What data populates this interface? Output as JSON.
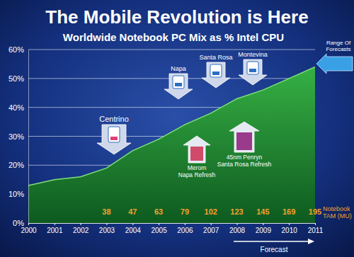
{
  "chart_data": {
    "type": "area",
    "title": "The Mobile Revolution is Here",
    "subtitle": "Worldwide Notebook PC Mix as % Intel CPU",
    "x": [
      2000,
      2001,
      2002,
      2003,
      2004,
      2005,
      2006,
      2007,
      2008,
      2009,
      2010,
      2011
    ],
    "series": [
      {
        "color": "#36b044",
        "values": [
          13,
          15,
          16,
          19,
          25,
          29,
          34,
          38,
          43,
          46,
          50,
          54
        ]
      }
    ],
    "xlim": [
      2000,
      2011
    ],
    "xticks": [
      2000,
      2001,
      2002,
      2003,
      2004,
      2005,
      2006,
      2007,
      2008,
      2009,
      2010,
      2011
    ],
    "ylim": [
      0,
      60
    ],
    "yticks": [
      {
        "value": 0,
        "label": "0%"
      },
      {
        "value": 10,
        "label": "10%"
      },
      {
        "value": 20,
        "label": "20%"
      },
      {
        "value": 30,
        "label": "30%"
      },
      {
        "value": 40,
        "label": "40%"
      },
      {
        "value": 50,
        "label": "50%"
      },
      {
        "value": 60,
        "label": "60%"
      }
    ],
    "grid": true,
    "notebook_tam": {
      "lines": [
        "Notebook",
        "TAM (MU)"
      ],
      "x": [
        2003,
        2004,
        2005,
        2006,
        2007,
        2008,
        2009,
        2010,
        2011
      ],
      "values": [
        38,
        47,
        63,
        79,
        102,
        123,
        145,
        169,
        195
      ]
    },
    "platforms": [
      {
        "lines": [
          "Centrino"
        ]
      },
      {
        "lines": [
          "Napa"
        ]
      },
      {
        "lines": [
          "Santa Rosa"
        ]
      },
      {
        "lines": [
          "Montevina"
        ]
      }
    ],
    "refreshes": [
      {
        "lines": [
          "Merom",
          "Napa Refresh"
        ]
      },
      {
        "lines": [
          "45nm Penryn",
          "Santa Rosa Refresh"
        ]
      }
    ],
    "range_of_forecasts": {
      "lines": [
        "Range Of",
        "Forecasts"
      ]
    },
    "forecast": "Forecast"
  }
}
